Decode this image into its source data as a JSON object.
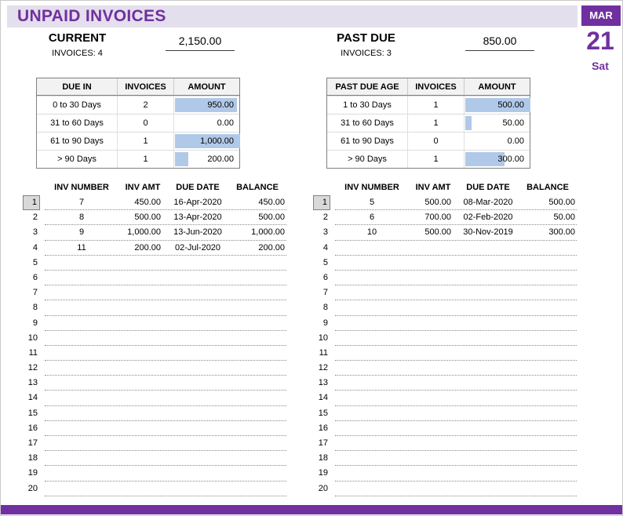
{
  "title": "UNPAID INVOICES",
  "date": {
    "month": "MAR",
    "day": "21",
    "weekday": "Sat"
  },
  "summary": {
    "current": {
      "label": "CURRENT",
      "invoices_label": "INVOICES: 4",
      "amount": "2,150.00"
    },
    "past_due": {
      "label": "PAST DUE",
      "invoices_label": "INVOICES: 3",
      "amount": "850.00"
    }
  },
  "aging_tables": [
    {
      "headers": [
        "DUE IN",
        "INVOICES",
        "AMOUNT"
      ],
      "rows": [
        {
          "bucket": "0 to 30 Days",
          "invoices": "2",
          "amount": "950.00",
          "bar_pct": 95
        },
        {
          "bucket": "31 to 60 Days",
          "invoices": "0",
          "amount": "0.00",
          "bar_pct": 0
        },
        {
          "bucket": "61 to 90 Days",
          "invoices": "1",
          "amount": "1,000.00",
          "bar_pct": 100
        },
        {
          "bucket": "> 90 Days",
          "invoices": "1",
          "amount": "200.00",
          "bar_pct": 20
        }
      ]
    },
    {
      "headers": [
        "PAST DUE AGE",
        "INVOICES",
        "AMOUNT"
      ],
      "rows": [
        {
          "bucket": "1 to 30 Days",
          "invoices": "1",
          "amount": "500.00",
          "bar_pct": 100
        },
        {
          "bucket": "31 to 60 Days",
          "invoices": "1",
          "amount": "50.00",
          "bar_pct": 10
        },
        {
          "bucket": "61 to 90 Days",
          "invoices": "0",
          "amount": "0.00",
          "bar_pct": 0
        },
        {
          "bucket": "> 90 Days",
          "invoices": "1",
          "amount": "300.00",
          "bar_pct": 60
        }
      ]
    }
  ],
  "invoice_lists": [
    {
      "headers": [
        "INV NUMBER",
        "INV AMT",
        "DUE DATE",
        "BALANCE"
      ],
      "total_rows": 20,
      "highlighted_row": 1,
      "rows": [
        {
          "num": "1",
          "inv_number": "7",
          "inv_amt": "450.00",
          "due_date": "16-Apr-2020",
          "balance": "450.00"
        },
        {
          "num": "2",
          "inv_number": "8",
          "inv_amt": "500.00",
          "due_date": "13-Apr-2020",
          "balance": "500.00"
        },
        {
          "num": "3",
          "inv_number": "9",
          "inv_amt": "1,000.00",
          "due_date": "13-Jun-2020",
          "balance": "1,000.00"
        },
        {
          "num": "4",
          "inv_number": "11",
          "inv_amt": "200.00",
          "due_date": "02-Jul-2020",
          "balance": "200.00"
        }
      ]
    },
    {
      "headers": [
        "INV NUMBER",
        "INV AMT",
        "DUE DATE",
        "BALANCE"
      ],
      "total_rows": 20,
      "highlighted_row": 1,
      "rows": [
        {
          "num": "1",
          "inv_number": "5",
          "inv_amt": "500.00",
          "due_date": "08-Mar-2020",
          "balance": "500.00"
        },
        {
          "num": "2",
          "inv_number": "6",
          "inv_amt": "700.00",
          "due_date": "02-Feb-2020",
          "balance": "50.00"
        },
        {
          "num": "3",
          "inv_number": "10",
          "inv_amt": "500.00",
          "due_date": "30-Nov-2019",
          "balance": "300.00"
        }
      ]
    }
  ],
  "colors": {
    "accent_purple": "#7030A0",
    "title_bar_bg": "#E4DFEC",
    "databar_blue": "#B1C9E8",
    "table_header_gray": "#F2F2F2",
    "row_highlight_gray": "#D9D9D9"
  }
}
